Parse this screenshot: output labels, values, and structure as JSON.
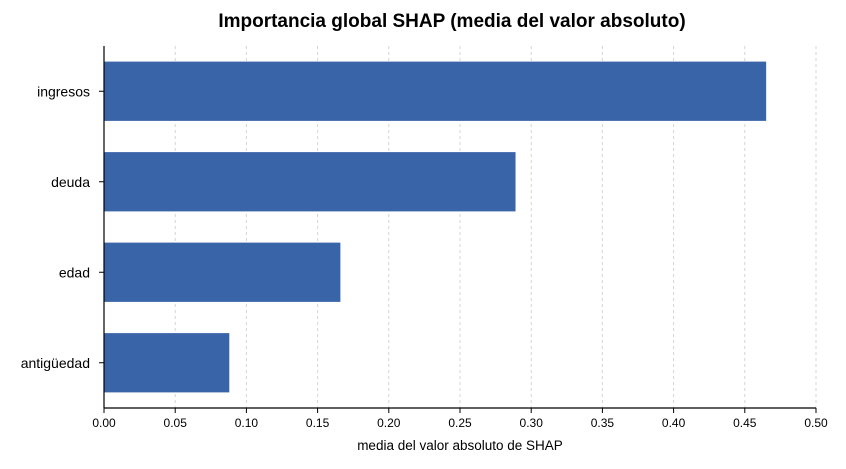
{
  "chart_data": {
    "type": "bar",
    "orientation": "horizontal",
    "title": "Importancia global SHAP (media del valor absoluto)",
    "xlabel": "media del valor absoluto de SHAP",
    "ylabel": "",
    "categories": [
      "ingresos",
      "deuda",
      "edad",
      "antigüedad"
    ],
    "values": [
      0.465,
      0.289,
      0.166,
      0.088
    ],
    "xlim": [
      0.0,
      0.5
    ],
    "xticks": [
      "0.00",
      "0.05",
      "0.10",
      "0.15",
      "0.20",
      "0.25",
      "0.30",
      "0.35",
      "0.40",
      "0.45",
      "0.50"
    ],
    "grid": "vertical dashed",
    "legend": "none",
    "bar_color": "#3a64a8"
  }
}
